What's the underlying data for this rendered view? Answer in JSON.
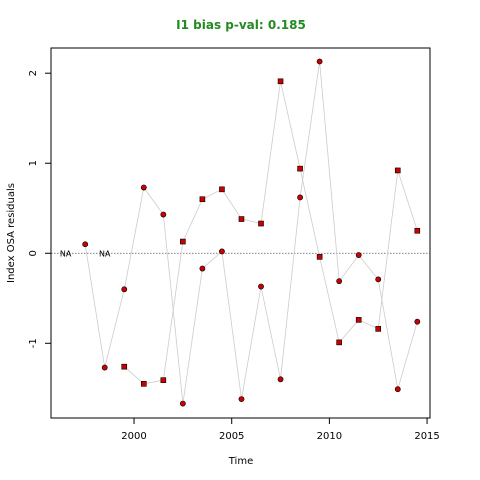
{
  "chart_data": {
    "type": "scatter",
    "title": "I1 bias p-val: 0.185",
    "title_color": "#228B22",
    "xlabel": "Time",
    "ylabel": "Index OSA residuals",
    "xlim": [
      1995.75,
      2015.15
    ],
    "ylim": [
      -1.83,
      2.28
    ],
    "x_ticks": [
      2000,
      2005,
      2010,
      2015
    ],
    "y_ticks": [
      -1,
      0,
      1,
      2
    ],
    "grid": false,
    "reference_line": 0,
    "na_labels": [
      {
        "text": "NA",
        "x": 1996.5
      },
      {
        "text": "NA",
        "x": 1998.5
      }
    ],
    "point_fill": "#cc0000",
    "line_color": "#cccccc",
    "series": [
      {
        "marker": "circle",
        "x": [
          1997.5,
          1998.5,
          1999.5,
          2000.5,
          2001.5,
          2002.5,
          2003.5,
          2004.5,
          2005.5,
          2006.5,
          2007.5,
          2008.5,
          2009.5,
          2010.5,
          2011.5,
          2012.5,
          2013.5,
          2014.5
        ],
        "y": [
          0.1,
          -1.27,
          -0.4,
          0.73,
          0.43,
          -1.67,
          -0.17,
          0.02,
          -1.62,
          -0.37,
          -1.4,
          0.62,
          2.13,
          -0.31,
          -0.02,
          -0.29,
          -1.51,
          -0.76
        ]
      },
      {
        "marker": "square",
        "x": [
          1999.5,
          2000.5,
          2001.5,
          2002.5,
          2003.5,
          2004.5,
          2005.5,
          2006.5,
          2007.5,
          2008.5,
          2009.5,
          2010.5,
          2011.5,
          2012.5,
          2013.5,
          2014.5
        ],
        "y": [
          -1.26,
          -1.45,
          -1.41,
          0.13,
          0.6,
          0.71,
          0.38,
          0.33,
          1.91,
          0.94,
          -0.04,
          -0.99,
          -0.74,
          -0.84,
          0.92,
          0.25
        ]
      }
    ]
  }
}
